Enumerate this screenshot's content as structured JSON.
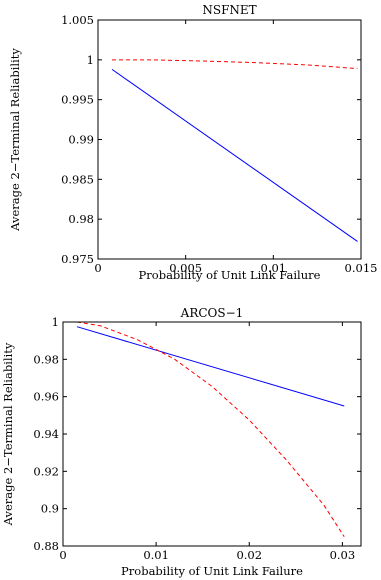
{
  "chart_data": [
    {
      "type": "line",
      "title": "NSFNET",
      "xlabel": "Probability of Unit Link Failure",
      "ylabel": "Average 2−Terminal Reliability",
      "xlim": [
        0,
        0.015
      ],
      "ylim": [
        0.975,
        1.005
      ],
      "xticks": [
        0,
        0.005,
        0.01,
        0.015
      ],
      "xtick_labels": [
        "0",
        "0.005",
        "0.01",
        "0.015"
      ],
      "yticks": [
        0.975,
        0.98,
        0.985,
        0.99,
        0.995,
        1,
        1.005
      ],
      "ytick_labels": [
        "0.975",
        "0.98",
        "0.985",
        "0.99",
        "0.995",
        "1",
        "1.005"
      ],
      "grid": false,
      "series": [
        {
          "style": "solid",
          "color": "#0000ff",
          "x": [
            0.0008,
            0.0148
          ],
          "y": [
            0.9988,
            0.9772
          ]
        },
        {
          "style": "dashed",
          "color": "#ff0000",
          "x": [
            0.0008,
            0.003,
            0.006,
            0.009,
            0.012,
            0.0148
          ],
          "y": [
            1.0,
            1.0,
            0.99985,
            0.99965,
            0.99935,
            0.9989
          ]
        }
      ]
    },
    {
      "type": "line",
      "title": "ARCOS−1",
      "xlabel": "Probability of Unit Link Failure",
      "ylabel": "Average 2−Terminal Reliability",
      "xlim": [
        0,
        0.032
      ],
      "ylim": [
        0.88,
        1.0
      ],
      "xticks": [
        0,
        0.01,
        0.02,
        0.03
      ],
      "xtick_labels": [
        "0",
        "0.01",
        "0.02",
        "0.03"
      ],
      "yticks": [
        0.88,
        0.9,
        0.92,
        0.94,
        0.96,
        0.98,
        1
      ],
      "ytick_labels": [
        "0.88",
        "0.9",
        "0.92",
        "0.94",
        "0.96",
        "0.98",
        "1"
      ],
      "grid": false,
      "series": [
        {
          "style": "solid",
          "color": "#0000ff",
          "x": [
            0.0015,
            0.0302
          ],
          "y": [
            0.9975,
            0.955
          ]
        },
        {
          "style": "dashed",
          "color": "#ff0000",
          "x": [
            0.0015,
            0.004,
            0.008,
            0.012,
            0.016,
            0.02,
            0.024,
            0.028,
            0.0302
          ],
          "y": [
            1.0,
            0.998,
            0.9905,
            0.98,
            0.9655,
            0.9475,
            0.926,
            0.902,
            0.885
          ]
        }
      ]
    }
  ]
}
